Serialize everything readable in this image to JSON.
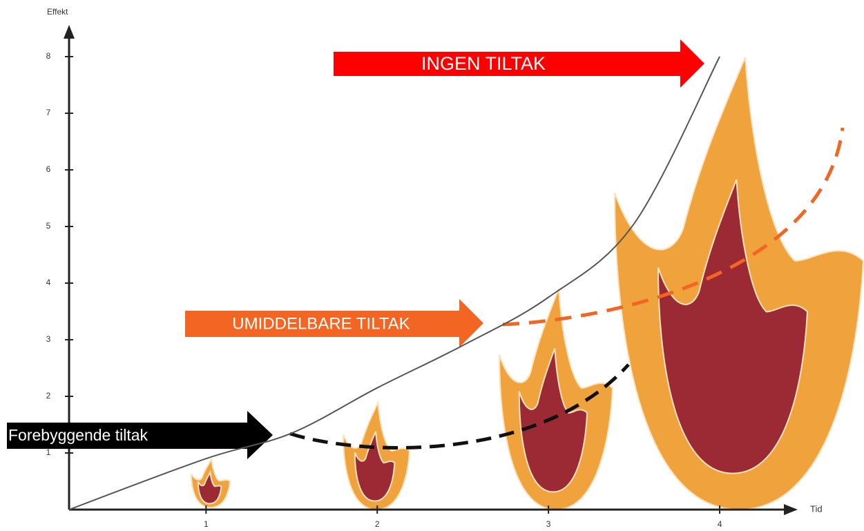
{
  "chart_data": {
    "type": "line",
    "ylabel": "Effekt",
    "xlabel": "Tid",
    "x": [
      0.2,
      1,
      1.5,
      2,
      2.5,
      3,
      3.5,
      4
    ],
    "series": [
      {
        "color": "#555555",
        "values": [
          0,
          0.9,
          1.35,
          2.15,
          2.9,
          3.75,
          5.05,
          8
        ]
      }
    ],
    "xlim": [
      0.2,
      4.5
    ],
    "xticks": [
      1,
      2,
      3,
      4
    ],
    "ylim": [
      0,
      8.5
    ],
    "yticks": [
      1,
      2,
      3,
      4,
      5,
      6,
      7,
      8
    ],
    "annotations": {
      "high": "INGEN TILTAK",
      "mid": "UMIDDELBARE TILTAK",
      "low": "Forebyggende tiltak"
    }
  }
}
